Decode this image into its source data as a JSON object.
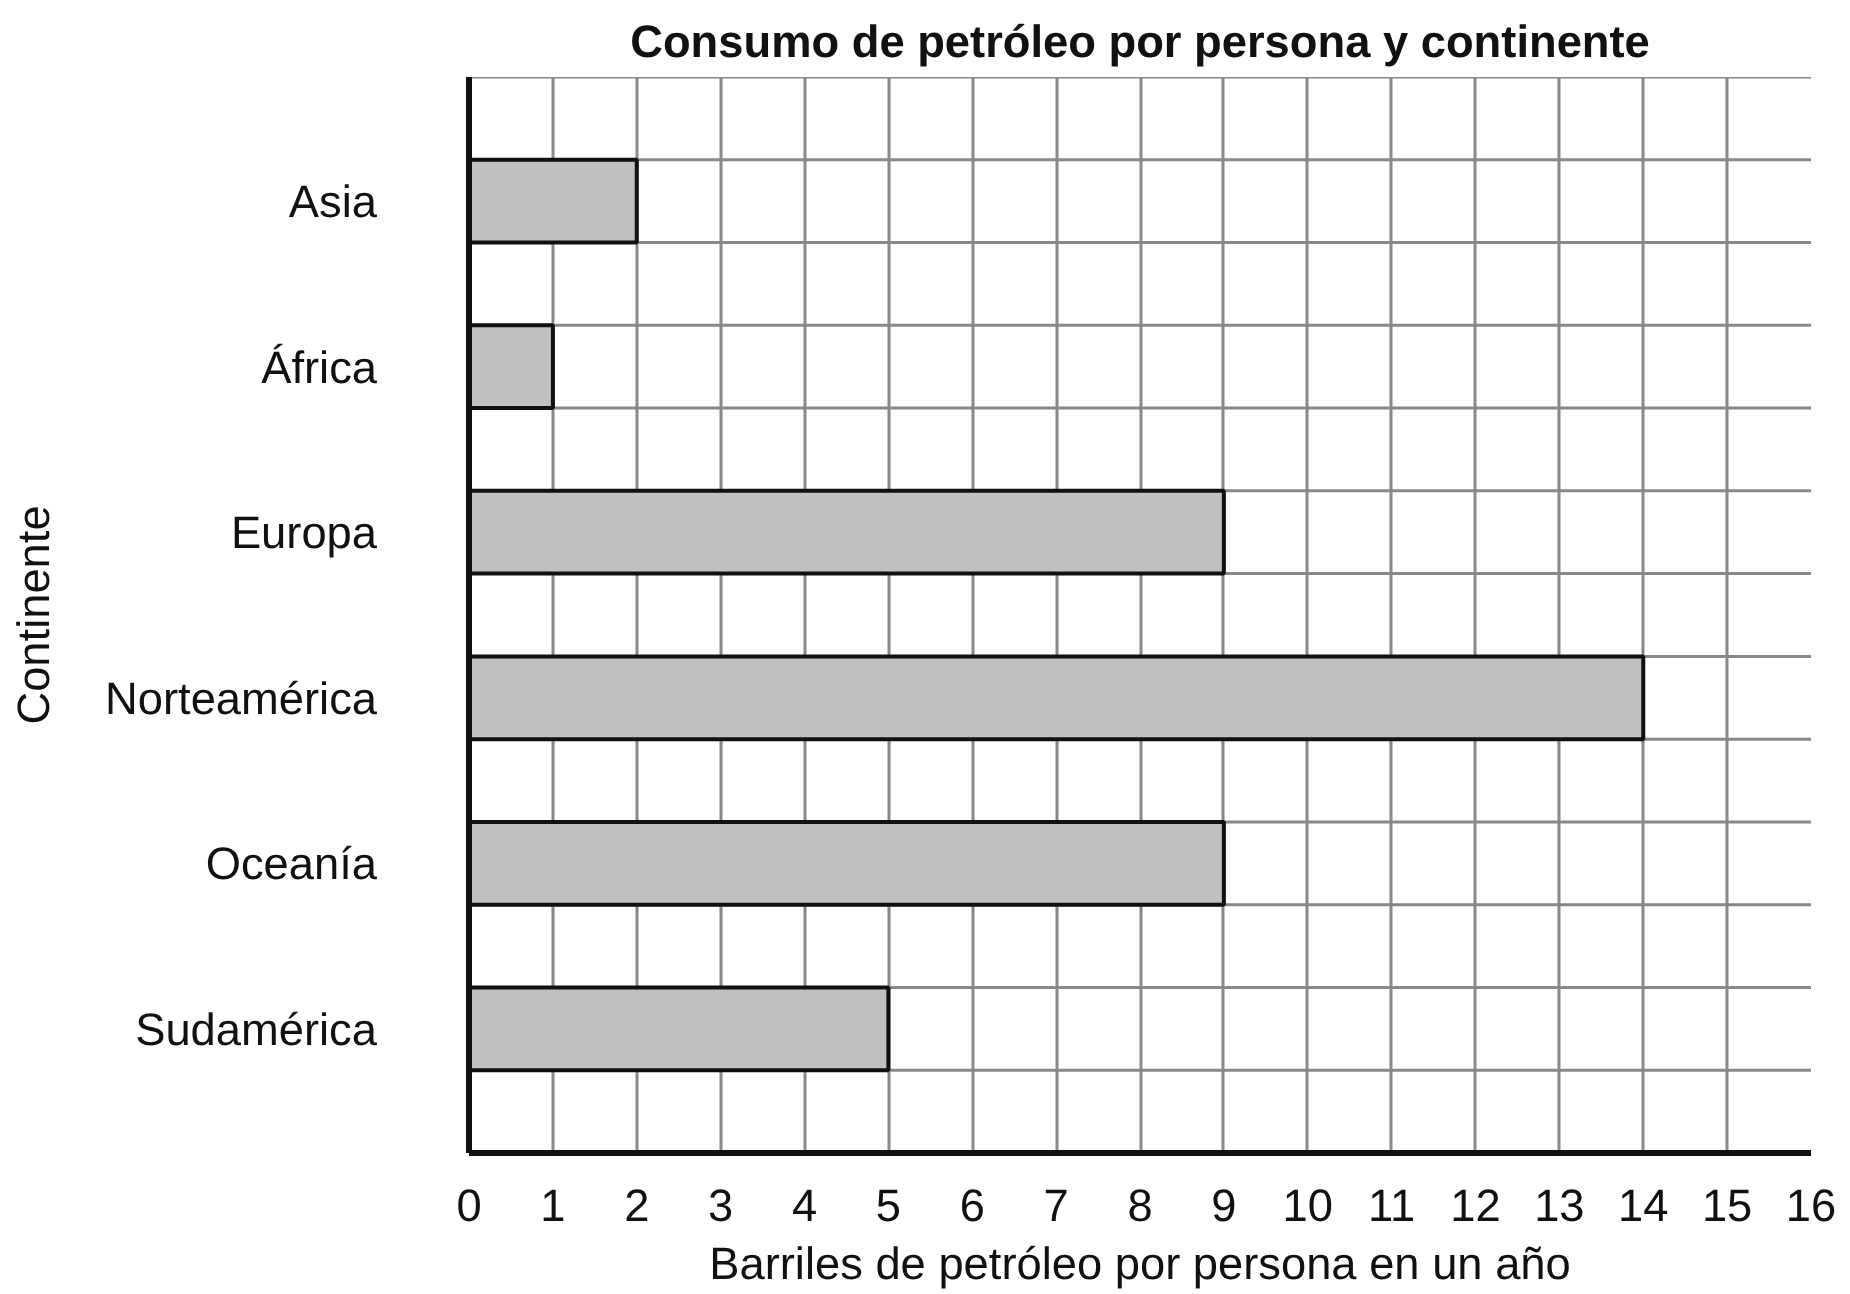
{
  "chart_data": {
    "type": "bar",
    "orientation": "horizontal",
    "title": "Consumo de petróleo por persona y continente",
    "xlabel": "Barriles de petróleo por persona en un año",
    "ylabel": "Continente",
    "categories": [
      "Asia",
      "África",
      "Europa",
      "Norteamérica",
      "Oceanía",
      "Sudamérica"
    ],
    "values": [
      2,
      1,
      9,
      14,
      9,
      5
    ],
    "color": "#c0c0c0",
    "xlim": [
      0,
      16
    ],
    "xticks": [
      0,
      1,
      2,
      3,
      4,
      5,
      6,
      7,
      8,
      9,
      10,
      11,
      12,
      13,
      14,
      15,
      16
    ],
    "grid": true
  }
}
